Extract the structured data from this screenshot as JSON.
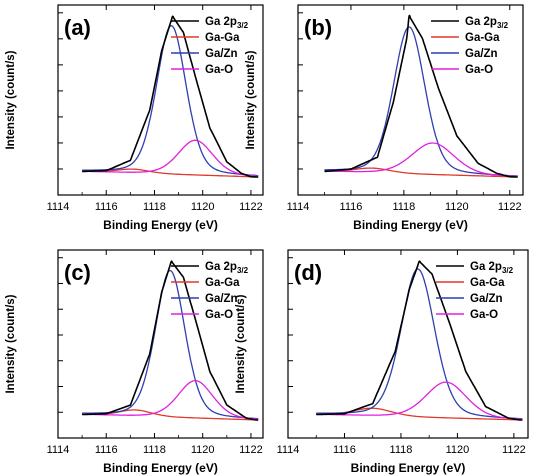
{
  "figure": {
    "chart_data": [
      {
        "type": "line",
        "panel_label": "(a)",
        "xlabel": "Binding Energy (eV)",
        "ylabel": "Intensity (count/s)",
        "xlim": [
          1114,
          1122.5
        ],
        "x_ticks": [
          1114,
          1116,
          1118,
          1120,
          1122
        ],
        "y_tick_labels": "none",
        "grid": false,
        "legend_position": "top-right",
        "series": [
          {
            "name": "Ga 2p3/2",
            "color": "#000000",
            "shape": "sum",
            "points": [
              [
                1115.0,
                0.0
              ],
              [
                1116.0,
                0.01
              ],
              [
                1117.0,
                0.08
              ],
              [
                1117.8,
                0.4
              ],
              [
                1118.3,
                0.78
              ],
              [
                1118.75,
                1.0
              ],
              [
                1119.2,
                0.9
              ],
              [
                1119.7,
                0.62
              ],
              [
                1120.3,
                0.3
              ],
              [
                1121.0,
                0.09
              ],
              [
                1121.6,
                0.02
              ],
              [
                1122.0,
                0.0
              ]
            ]
          },
          {
            "name": "Ga-Ga",
            "color": "#e03a2e",
            "shape": "peak",
            "center": 1117.1,
            "height": 0.025,
            "fwhm": 1.6
          },
          {
            "name": "Ga/Zn",
            "color": "#2f3fb0",
            "shape": "peak",
            "center": 1118.7,
            "height": 0.94,
            "fwhm": 1.45
          },
          {
            "name": "Ga-O",
            "color": "#e020e0",
            "shape": "peak",
            "center": 1119.7,
            "height": 0.22,
            "fwhm": 1.7
          }
        ]
      },
      {
        "type": "line",
        "panel_label": "(b)",
        "xlabel": "Binding Energy (eV)",
        "ylabel": "Intensity (count/s)",
        "xlim": [
          1114,
          1122.5
        ],
        "x_ticks": [
          1114,
          1116,
          1118,
          1120,
          1122
        ],
        "y_tick_labels": "none",
        "grid": false,
        "legend_position": "top-right",
        "series": [
          {
            "name": "Ga 2p3/2",
            "color": "#000000",
            "shape": "sum",
            "points": [
              [
                1115.0,
                0.0
              ],
              [
                1116.0,
                0.02
              ],
              [
                1117.0,
                0.1
              ],
              [
                1117.6,
                0.45
              ],
              [
                1118.1,
                0.85
              ],
              [
                1118.2,
                1.0
              ],
              [
                1118.7,
                0.86
              ],
              [
                1119.3,
                0.55
              ],
              [
                1120.0,
                0.25
              ],
              [
                1120.8,
                0.08
              ],
              [
                1121.5,
                0.02
              ],
              [
                1122.0,
                0.0
              ]
            ]
          },
          {
            "name": "Ga-Ga",
            "color": "#e03a2e",
            "shape": "peak",
            "center": 1116.8,
            "height": 0.03,
            "fwhm": 1.6
          },
          {
            "name": "Ga/Zn",
            "color": "#2f3fb0",
            "shape": "peak",
            "center": 1118.2,
            "height": 0.93,
            "fwhm": 1.4
          },
          {
            "name": "Ga-O",
            "color": "#e020e0",
            "shape": "peak",
            "center": 1119.1,
            "height": 0.2,
            "fwhm": 1.9
          }
        ]
      },
      {
        "type": "line",
        "panel_label": "(c)",
        "xlabel": "Binding Energy (eV)",
        "ylabel": "Intensity (count/s)",
        "xlim": [
          1114,
          1122.5
        ],
        "x_ticks": [
          1114,
          1116,
          1118,
          1120,
          1122
        ],
        "y_tick_labels": "none",
        "grid": false,
        "legend_position": "top-right",
        "series": [
          {
            "name": "Ga 2p3/2",
            "color": "#000000",
            "shape": "sum",
            "points": [
              [
                1115.0,
                0.0
              ],
              [
                1116.0,
                0.01
              ],
              [
                1117.0,
                0.07
              ],
              [
                1117.8,
                0.4
              ],
              [
                1118.3,
                0.8
              ],
              [
                1118.7,
                1.0
              ],
              [
                1119.2,
                0.9
              ],
              [
                1119.7,
                0.63
              ],
              [
                1120.3,
                0.3
              ],
              [
                1121.0,
                0.09
              ],
              [
                1121.8,
                0.01
              ],
              [
                1122.2,
                0.0
              ]
            ]
          },
          {
            "name": "Ga-Ga",
            "color": "#e03a2e",
            "shape": "peak",
            "center": 1117.2,
            "height": 0.04,
            "fwhm": 1.6
          },
          {
            "name": "Ga/Zn",
            "color": "#2f3fb0",
            "shape": "peak",
            "center": 1118.65,
            "height": 0.94,
            "fwhm": 1.45
          },
          {
            "name": "Ga-O",
            "color": "#e020e0",
            "shape": "peak",
            "center": 1119.7,
            "height": 0.24,
            "fwhm": 1.7
          }
        ]
      },
      {
        "type": "line",
        "panel_label": "(d)",
        "xlabel": "Binding Energy (eV)",
        "ylabel": "Intensity (count/s)",
        "xlim": [
          1114,
          1122.5
        ],
        "x_ticks": [
          1114,
          1116,
          1118,
          1120,
          1122
        ],
        "y_tick_labels": "none",
        "grid": false,
        "legend_position": "top-right",
        "series": [
          {
            "name": "Ga 2p3/2",
            "color": "#000000",
            "shape": "sum",
            "points": [
              [
                1115.0,
                0.0
              ],
              [
                1116.0,
                0.01
              ],
              [
                1117.0,
                0.08
              ],
              [
                1117.8,
                0.42
              ],
              [
                1118.3,
                0.82
              ],
              [
                1118.65,
                1.0
              ],
              [
                1119.1,
                0.92
              ],
              [
                1119.7,
                0.62
              ],
              [
                1120.3,
                0.3
              ],
              [
                1121.0,
                0.08
              ],
              [
                1121.8,
                0.01
              ],
              [
                1122.2,
                0.0
              ]
            ]
          },
          {
            "name": "Ga-Ga",
            "color": "#e03a2e",
            "shape": "peak",
            "center": 1117.0,
            "height": 0.05,
            "fwhm": 1.6
          },
          {
            "name": "Ga/Zn",
            "color": "#2f3fb0",
            "shape": "peak",
            "center": 1118.6,
            "height": 0.95,
            "fwhm": 1.4
          },
          {
            "name": "Ga-O",
            "color": "#e020e0",
            "shape": "peak",
            "center": 1119.6,
            "height": 0.23,
            "fwhm": 1.7
          }
        ]
      }
    ]
  }
}
